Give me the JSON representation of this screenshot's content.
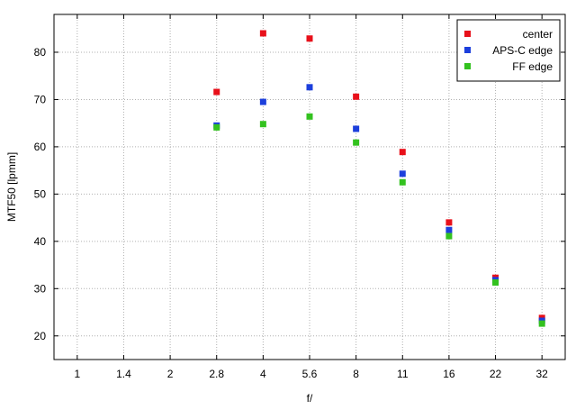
{
  "chart_data": {
    "type": "scatter",
    "title": "",
    "xlabel": "f/",
    "ylabel": "MTF50 [lpmm]",
    "categories": [
      "1",
      "1.4",
      "2",
      "2.8",
      "4",
      "5.6",
      "8",
      "11",
      "16",
      "22",
      "32"
    ],
    "yticks": [
      20,
      30,
      40,
      50,
      60,
      70,
      80
    ],
    "ylim": [
      15,
      88
    ],
    "grid": true,
    "legend_position": "top-right",
    "series": [
      {
        "name": "center",
        "color": "#e8101a",
        "points": [
          {
            "x": "2.8",
            "y": 71.6
          },
          {
            "x": "4",
            "y": 84.0
          },
          {
            "x": "5.6",
            "y": 82.9
          },
          {
            "x": "8",
            "y": 70.6
          },
          {
            "x": "11",
            "y": 58.9
          },
          {
            "x": "16",
            "y": 44.0
          },
          {
            "x": "22",
            "y": 32.3
          },
          {
            "x": "32",
            "y": 23.8
          }
        ]
      },
      {
        "name": "APS-C edge",
        "color": "#1c3fdc",
        "points": [
          {
            "x": "2.8",
            "y": 64.5
          },
          {
            "x": "4",
            "y": 69.5
          },
          {
            "x": "5.6",
            "y": 72.6
          },
          {
            "x": "8",
            "y": 63.8
          },
          {
            "x": "11",
            "y": 54.3
          },
          {
            "x": "16",
            "y": 42.4
          },
          {
            "x": "22",
            "y": 31.8
          },
          {
            "x": "32",
            "y": 23.2
          }
        ]
      },
      {
        "name": "FF edge",
        "color": "#33c21f",
        "points": [
          {
            "x": "2.8",
            "y": 64.1
          },
          {
            "x": "4",
            "y": 64.8
          },
          {
            "x": "5.6",
            "y": 66.4
          },
          {
            "x": "8",
            "y": 60.9
          },
          {
            "x": "11",
            "y": 52.5
          },
          {
            "x": "16",
            "y": 41.1
          },
          {
            "x": "22",
            "y": 31.3
          },
          {
            "x": "32",
            "y": 22.6
          }
        ]
      }
    ]
  }
}
